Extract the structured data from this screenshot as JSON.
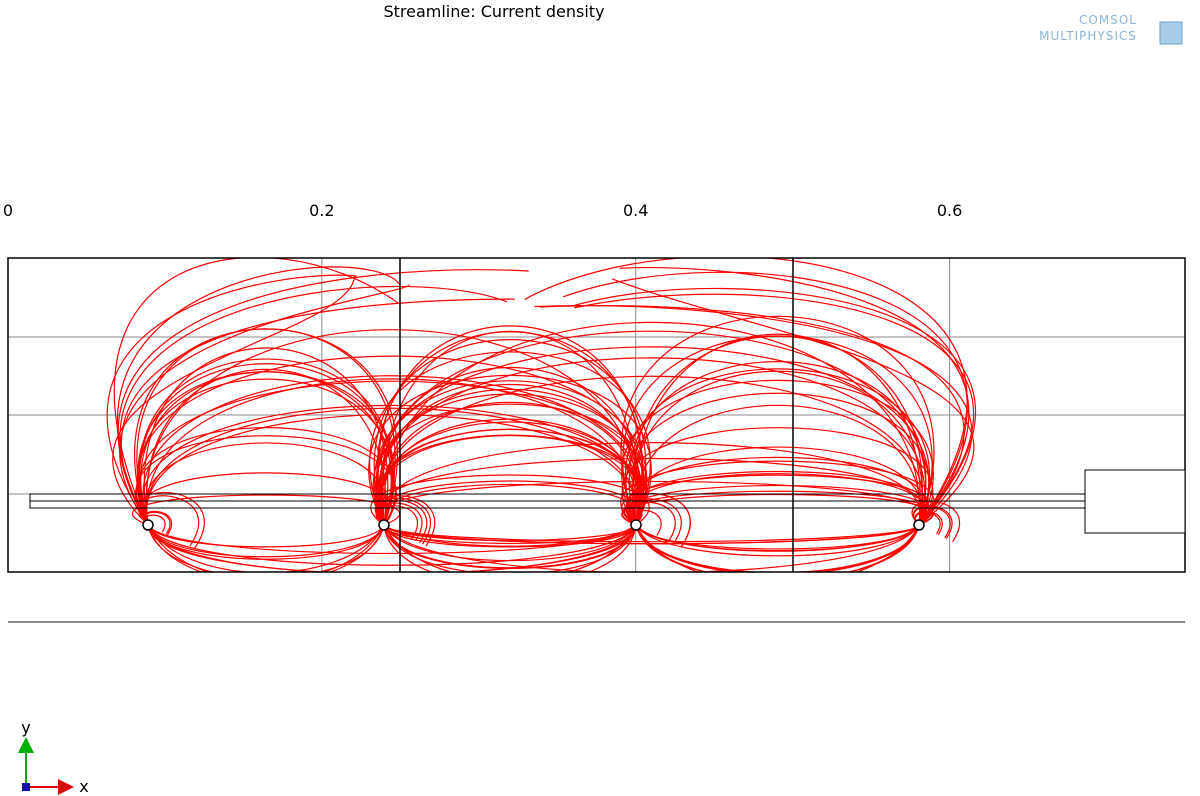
{
  "chart_data": {
    "type": "streamline",
    "title": "Streamline: Current density",
    "xlim": [
      0,
      0.75
    ],
    "xticks": [
      0,
      0.2,
      0.4,
      0.6
    ],
    "grid": true,
    "color": "#ff0000"
  },
  "logo": {
    "line1": "COMSOL",
    "line2": "MULTIPHYSICS"
  },
  "axes_triad": {
    "y": "y",
    "x": "x"
  }
}
